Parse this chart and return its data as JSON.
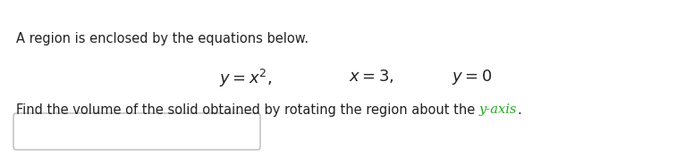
{
  "background_color": "#ffffff",
  "top_bar_color": "#fce8e8",
  "line1": "A region is enclosed by the equations below.",
  "eq1": "$y = x^2,$",
  "eq2": "$x = 3,$",
  "eq3": "$y = 0$",
  "line3_prefix": "Find the volume of the solid obtained by rotating the region about the ",
  "line3_highlight": "y-axis",
  "line3_suffix": ".",
  "highlight_color": "#22aa22",
  "text_color": "#222222",
  "font_size_main": 10.5,
  "font_size_eq": 13
}
